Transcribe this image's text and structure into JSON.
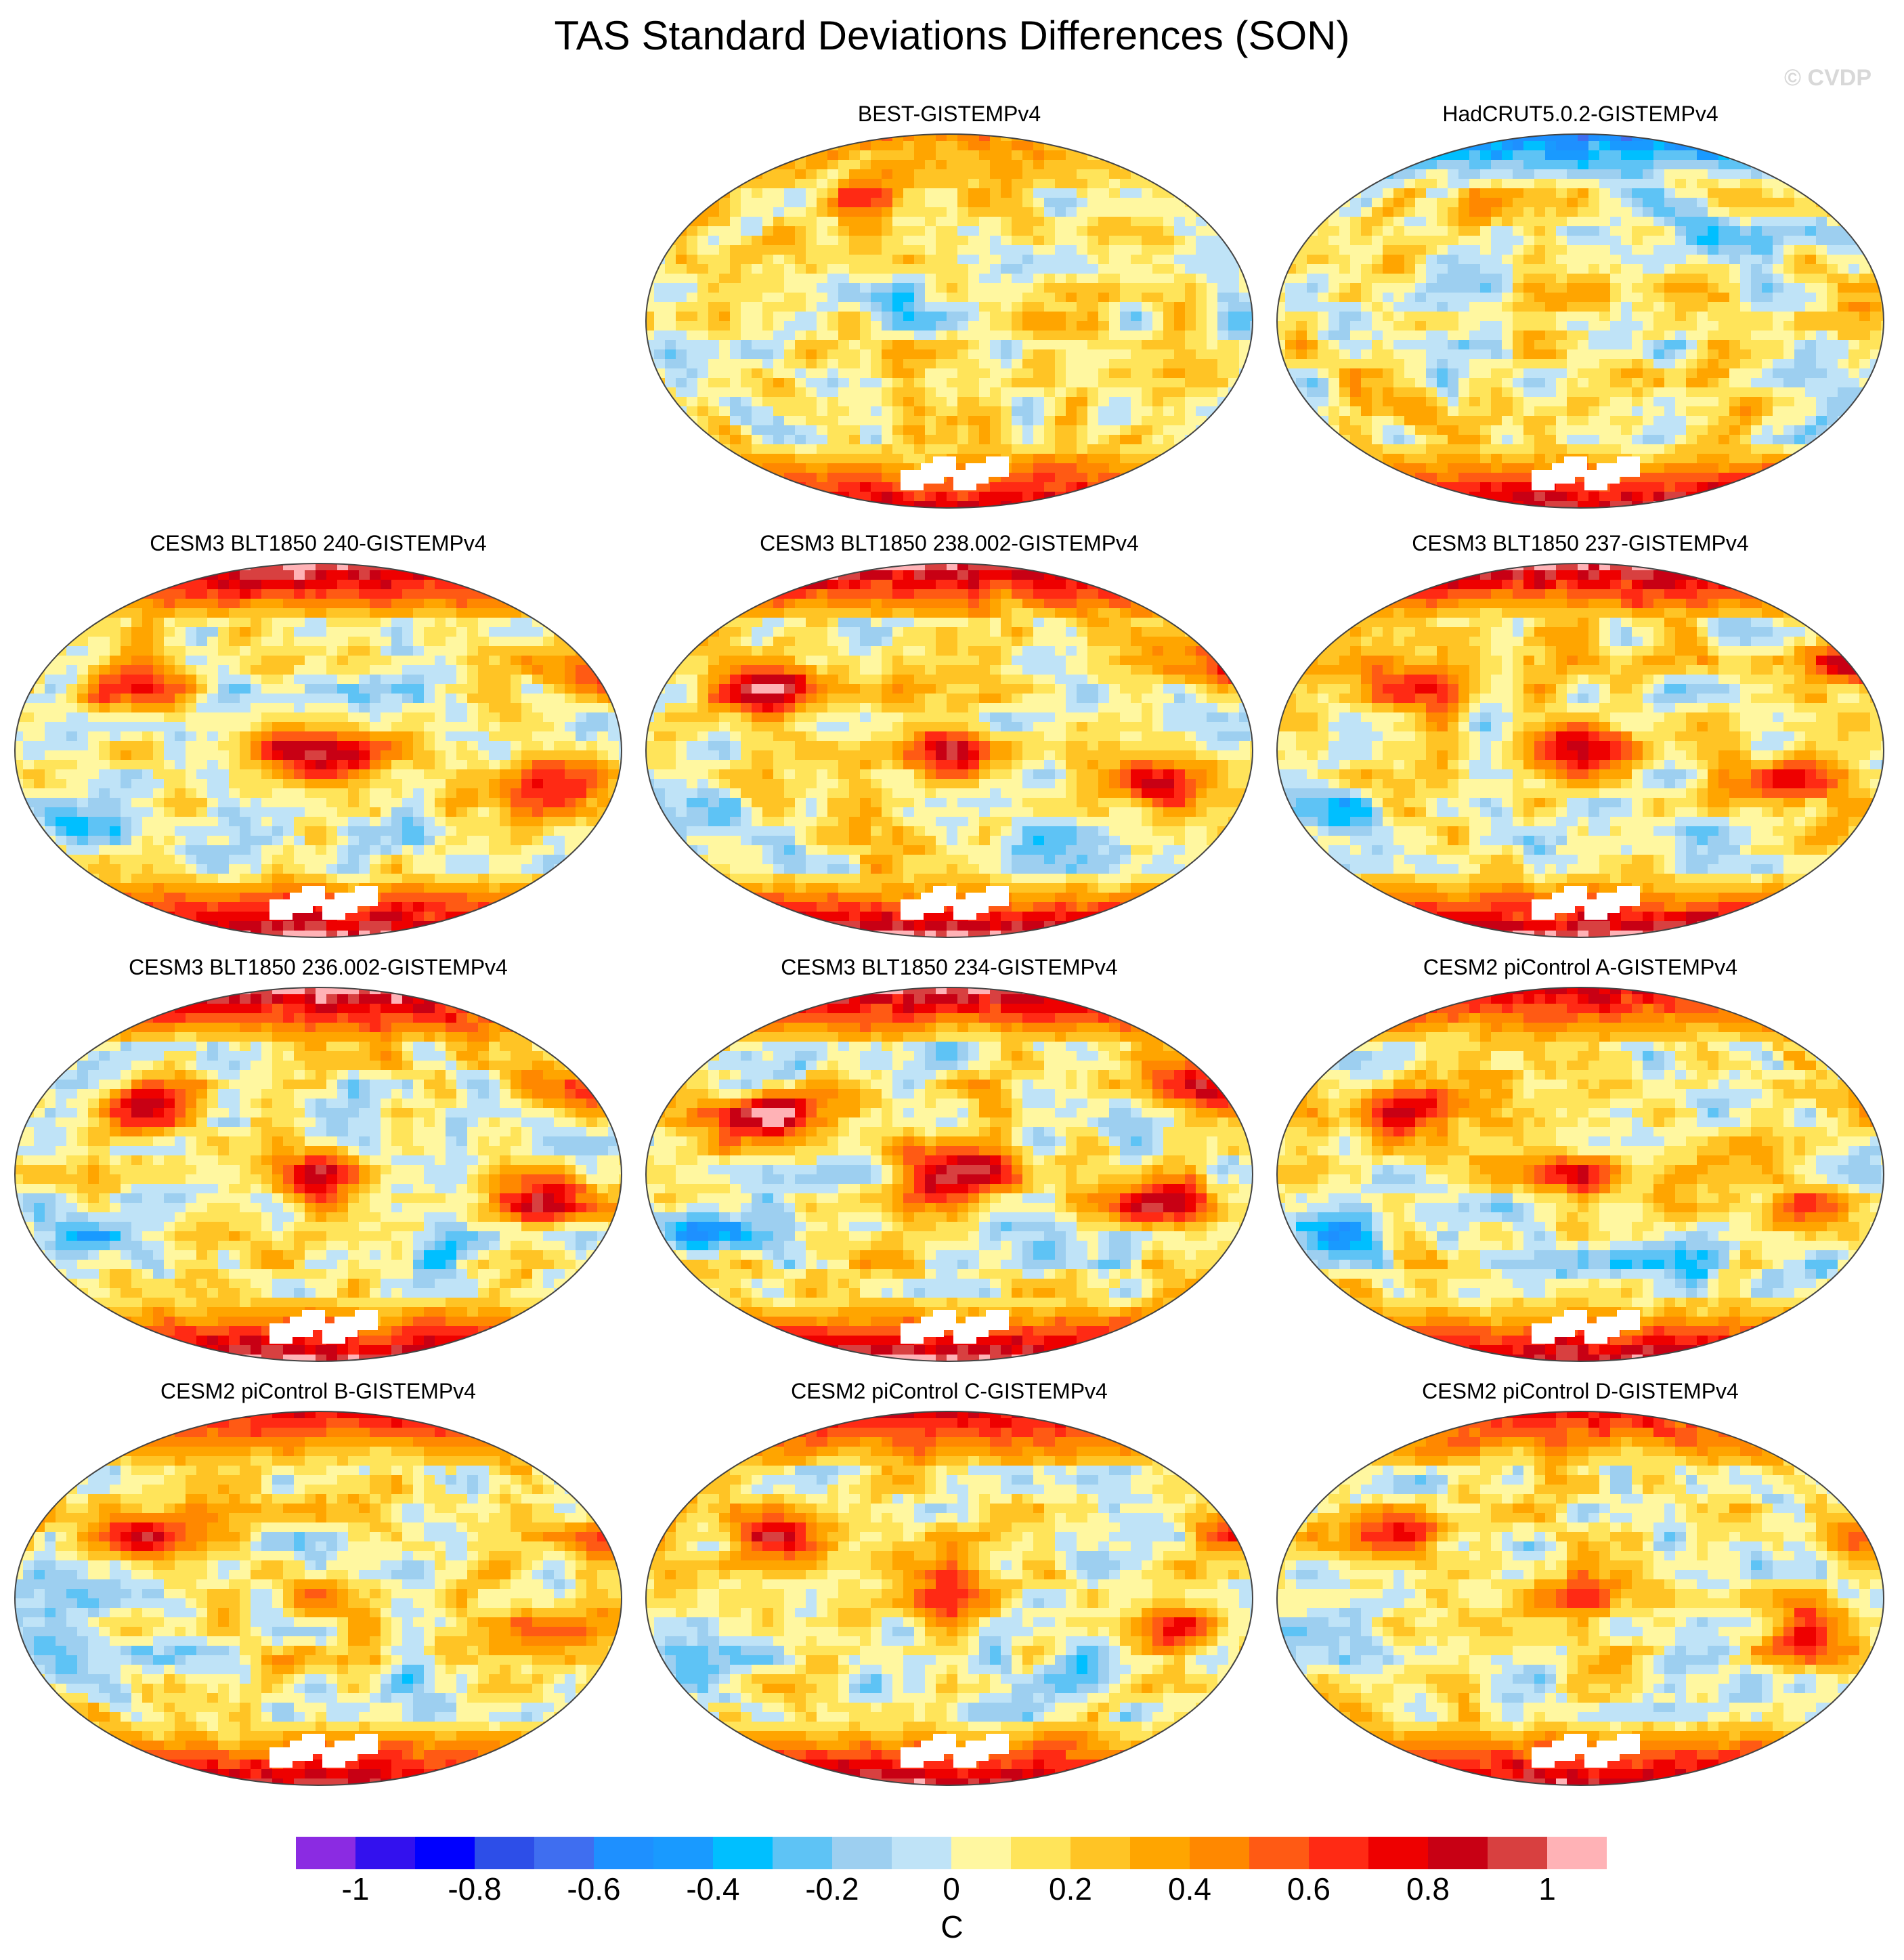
{
  "title": "TAS Standard Deviations Differences (SON)",
  "watermark": "© CVDP",
  "panels": [
    {
      "title": "BEST-GISTEMPv4",
      "arctic": 0.3,
      "antarctic": 0.7,
      "warm_centers": [
        [
          -60,
          60,
          0.8
        ],
        [
          -170,
          55,
          0.5
        ],
        [
          -100,
          30,
          0.3
        ]
      ],
      "cold_centers": [
        [
          150,
          -40,
          -0.25
        ],
        [
          -20,
          10,
          -0.2
        ]
      ]
    },
    {
      "title": "HadCRUT5.0.2-GISTEMPv4",
      "arctic": -0.7,
      "antarctic": 0.8,
      "warm_centers": [
        [
          -60,
          55,
          0.5
        ],
        [
          0,
          5,
          0.15
        ]
      ],
      "cold_centers": [
        [
          100,
          40,
          -0.3
        ],
        [
          160,
          -40,
          -0.3
        ]
      ]
    },
    {
      "title": "CESM3 BLT1850 240-GISTEMPv4",
      "arctic": 0.9,
      "antarctic": 0.9,
      "warm_centers": [
        [
          -100,
          30,
          0.8
        ],
        [
          0,
          0,
          0.9
        ],
        [
          120,
          -15,
          0.8
        ],
        [
          160,
          40,
          0.6
        ]
      ],
      "cold_centers": [
        [
          -140,
          -30,
          -0.4
        ],
        [
          60,
          -40,
          -0.3
        ]
      ]
    },
    {
      "title": "CESM3 BLT1850 238.002-GISTEMPv4",
      "arctic": 0.9,
      "antarctic": 0.9,
      "warm_centers": [
        [
          -100,
          30,
          0.8
        ],
        [
          0,
          0,
          0.9
        ],
        [
          120,
          -15,
          0.8
        ],
        [
          160,
          40,
          0.6
        ]
      ],
      "cold_centers": [
        [
          -140,
          -30,
          -0.4
        ],
        [
          60,
          -40,
          -0.3
        ]
      ]
    },
    {
      "title": "CESM3 BLT1850 237-GISTEMPv4",
      "arctic": 0.9,
      "antarctic": 0.9,
      "warm_centers": [
        [
          -100,
          30,
          0.8
        ],
        [
          0,
          0,
          0.9
        ],
        [
          120,
          -15,
          0.8
        ],
        [
          160,
          40,
          0.6
        ]
      ],
      "cold_centers": [
        [
          -140,
          -30,
          -0.4
        ],
        [
          60,
          -40,
          -0.3
        ]
      ]
    },
    {
      "title": "CESM3 BLT1850 236.002-GISTEMPv4",
      "arctic": 0.9,
      "antarctic": 0.9,
      "warm_centers": [
        [
          -100,
          30,
          0.8
        ],
        [
          0,
          0,
          0.9
        ],
        [
          120,
          -15,
          0.8
        ],
        [
          160,
          40,
          0.6
        ]
      ],
      "cold_centers": [
        [
          -140,
          -30,
          -0.4
        ],
        [
          60,
          -40,
          -0.3
        ]
      ]
    },
    {
      "title": "CESM3 BLT1850 234-GISTEMPv4",
      "arctic": 0.9,
      "antarctic": 0.9,
      "warm_centers": [
        [
          -100,
          30,
          0.9
        ],
        [
          0,
          0,
          1.0
        ],
        [
          120,
          -15,
          0.8
        ],
        [
          160,
          40,
          0.7
        ]
      ],
      "cold_centers": [
        [
          -140,
          -30,
          -0.4
        ],
        [
          60,
          -40,
          -0.3
        ]
      ]
    },
    {
      "title": "CESM2 piControl A-GISTEMPv4",
      "arctic": 0.7,
      "antarctic": 0.8,
      "warm_centers": [
        [
          -100,
          30,
          0.7
        ],
        [
          0,
          0,
          0.5
        ],
        [
          120,
          -15,
          0.5
        ],
        [
          170,
          30,
          0.5
        ]
      ],
      "cold_centers": [
        [
          -140,
          -30,
          -0.3
        ],
        [
          60,
          -40,
          -0.3
        ]
      ]
    },
    {
      "title": "CESM2 piControl B-GISTEMPv4",
      "arctic": 0.6,
      "antarctic": 0.8,
      "warm_centers": [
        [
          -100,
          30,
          0.7
        ],
        [
          0,
          0,
          0.4
        ],
        [
          120,
          -15,
          0.5
        ],
        [
          170,
          30,
          0.4
        ]
      ],
      "cold_centers": [
        [
          -140,
          -30,
          -0.3
        ],
        [
          60,
          -40,
          -0.3
        ]
      ]
    },
    {
      "title": "CESM2 piControl C-GISTEMPv4",
      "arctic": 0.7,
      "antarctic": 0.8,
      "warm_centers": [
        [
          -100,
          30,
          0.7
        ],
        [
          0,
          0,
          0.6
        ],
        [
          120,
          -15,
          0.5
        ],
        [
          170,
          30,
          0.5
        ]
      ],
      "cold_centers": [
        [
          -140,
          -30,
          -0.3
        ],
        [
          60,
          -40,
          -0.3
        ]
      ]
    },
    {
      "title": "CESM2 piControl D-GISTEMPv4",
      "arctic": 0.6,
      "antarctic": 0.8,
      "warm_centers": [
        [
          -100,
          30,
          0.7
        ],
        [
          0,
          0,
          0.4
        ],
        [
          120,
          -15,
          0.5
        ],
        [
          170,
          30,
          0.4
        ]
      ],
      "cold_centers": [
        [
          -140,
          -30,
          -0.3
        ],
        [
          60,
          -40,
          -0.3
        ]
      ]
    }
  ],
  "colorbar": {
    "unit": "C",
    "labels": [
      "-1",
      "-0.8",
      "-0.6",
      "-0.4",
      "-0.2",
      "0",
      "0.2",
      "0.4",
      "0.6",
      "0.8",
      "1"
    ],
    "label_values": [
      -1,
      -0.8,
      -0.6,
      -0.4,
      -0.2,
      0,
      0.2,
      0.4,
      0.6,
      0.8,
      1
    ],
    "range": [
      -1.1,
      1.1
    ],
    "colors": [
      "#8b2be2",
      "#3311ee",
      "#0000ff",
      "#2d4ee8",
      "#3f6ef0",
      "#1e90ff",
      "#199aff",
      "#00bfff",
      "#5ec3f5",
      "#9dcff0",
      "#bfe3f7",
      "#fff7a0",
      "#ffe45a",
      "#ffc425",
      "#ffa500",
      "#ff8800",
      "#ff5a14",
      "#ff2a14",
      "#ee0000",
      "#c80014",
      "#d84040",
      "#ffb2b6"
    ]
  }
}
